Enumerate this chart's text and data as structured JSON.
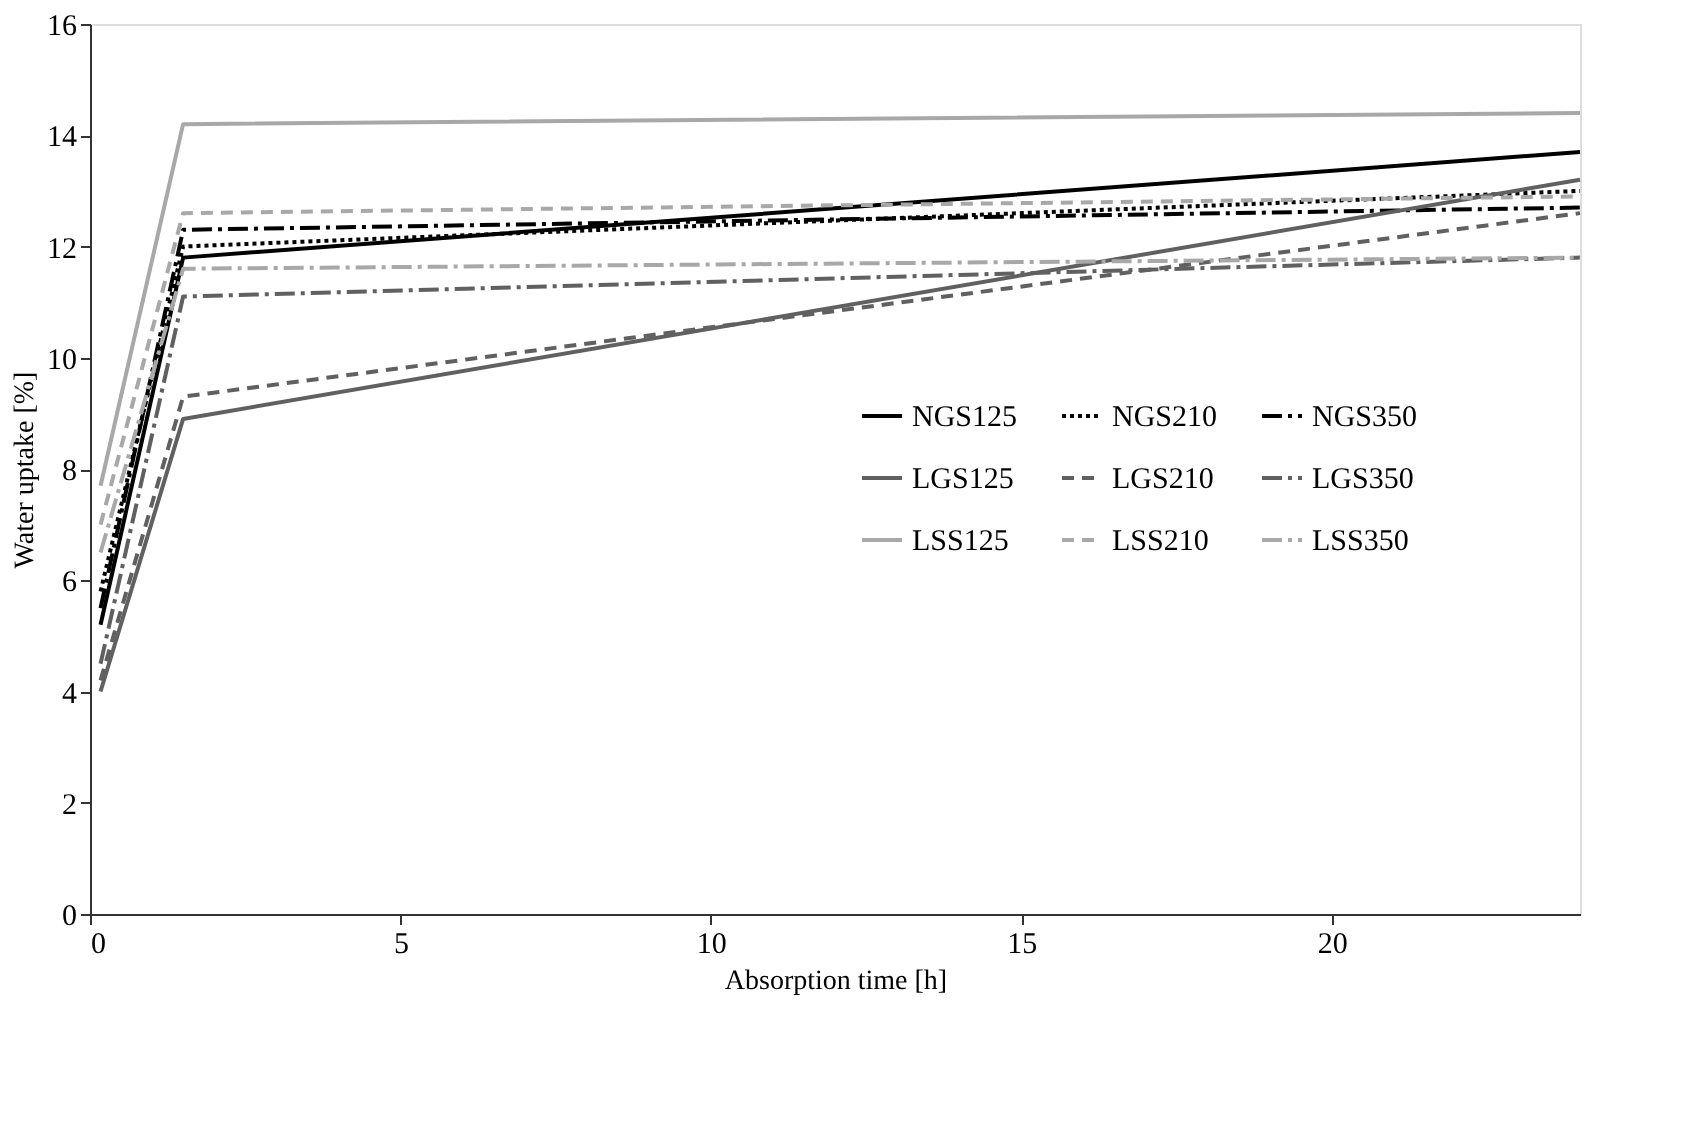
{
  "chart_data": {
    "type": "line",
    "xlabel": "Absorption time [h]",
    "ylabel": "Water uptake [%]",
    "x": [
      0.17,
      1.5,
      24
    ],
    "xlim": [
      0,
      24
    ],
    "xticks": [
      0,
      5,
      10,
      15,
      20
    ],
    "ylim": [
      0,
      16
    ],
    "yticks": [
      0,
      2,
      4,
      6,
      8,
      10,
      12,
      14,
      16
    ],
    "grid": false,
    "legend": "right",
    "marker": "none",
    "series": [
      {
        "name": "NGS125",
        "color": "#000000",
        "line_style": "solid",
        "values": [
          5.2,
          11.8,
          13.7
        ]
      },
      {
        "name": "NGS210",
        "color": "#000000",
        "line_style": "dotted",
        "values": [
          5.8,
          12.0,
          13.0
        ]
      },
      {
        "name": "NGS350",
        "color": "#000000",
        "line_style": "dashdot",
        "values": [
          5.5,
          12.3,
          12.7
        ]
      },
      {
        "name": "LGS125",
        "color": "#606060",
        "line_style": "solid",
        "values": [
          4.0,
          8.9,
          13.2
        ]
      },
      {
        "name": "LGS210",
        "color": "#606060",
        "line_style": "dashed",
        "values": [
          4.2,
          9.3,
          12.6
        ]
      },
      {
        "name": "LGS350",
        "color": "#606060",
        "line_style": "dashdot",
        "values": [
          4.5,
          11.1,
          11.8
        ]
      },
      {
        "name": "LSS125",
        "color": "#a8a8a8",
        "line_style": "solid",
        "values": [
          7.7,
          14.2,
          14.4
        ]
      },
      {
        "name": "LSS210",
        "color": "#a8a8a8",
        "line_style": "dashed",
        "values": [
          7.0,
          12.6,
          12.9
        ]
      },
      {
        "name": "LSS350",
        "color": "#a8a8a8",
        "line_style": "dashdot",
        "values": [
          6.5,
          11.6,
          11.8
        ]
      }
    ]
  }
}
